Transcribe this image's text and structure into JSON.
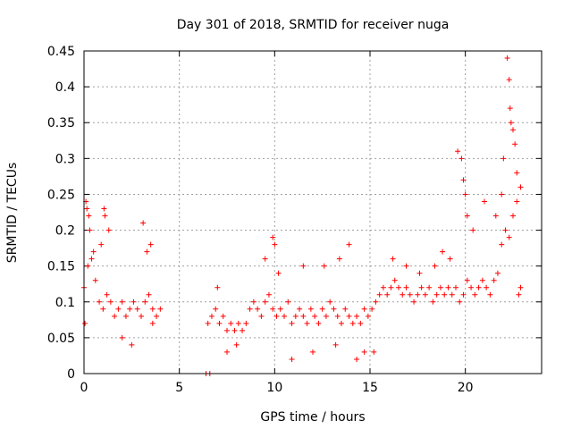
{
  "chart_data": {
    "type": "scatter",
    "title": "Day 301 of 2018, SRMTID for receiver nuga",
    "xlabel": "GPS time / hours",
    "ylabel": "SRMTID / TECUs",
    "xlim": [
      0,
      24
    ],
    "ylim": [
      0,
      0.45
    ],
    "xticks": [
      "0",
      "5",
      "10",
      "15",
      "20"
    ],
    "yticks": [
      "0",
      "0.05",
      "0.1",
      "0.15",
      "0.2",
      "0.25",
      "0.3",
      "0.35",
      "0.4",
      "0.45"
    ],
    "grid": true,
    "marker": "+",
    "color": "#ff0000",
    "series": [
      {
        "name": "SRMTID",
        "x": [
          0.0,
          0.2,
          0.4,
          0.6,
          0.8,
          1.0,
          1.2,
          1.4,
          1.6,
          1.8,
          2.0,
          2.2,
          2.4,
          2.6,
          2.8,
          3.0,
          3.2,
          3.4,
          3.6,
          3.8,
          4.0,
          6.5,
          6.7,
          6.9,
          7.1,
          7.3,
          7.5,
          7.7,
          7.9,
          8.1,
          8.3,
          8.5,
          8.7,
          8.9,
          9.1,
          9.3,
          9.5,
          9.7,
          9.9,
          10.1,
          10.3,
          10.5,
          10.7,
          10.9,
          11.1,
          11.3,
          11.5,
          11.7,
          11.9,
          12.1,
          12.3,
          12.5,
          12.7,
          12.9,
          13.1,
          13.3,
          13.5,
          13.7,
          13.9,
          14.1,
          14.3,
          14.5,
          14.7,
          14.9,
          15.1,
          15.3,
          15.5,
          15.7,
          15.9,
          16.1,
          16.3,
          16.5,
          16.7,
          16.9,
          17.1,
          17.3,
          17.5,
          17.7,
          17.9,
          18.1,
          18.3,
          18.5,
          18.7,
          18.9,
          19.1,
          19.3,
          19.5,
          19.7,
          19.9,
          20.1,
          20.3,
          20.5,
          20.7,
          20.9,
          21.1,
          21.3,
          21.5,
          21.7,
          21.9,
          22.1,
          22.3,
          22.5,
          22.7,
          22.9,
          0.05,
          0.1,
          0.15,
          0.25,
          0.3,
          0.5,
          0.9,
          1.05,
          1.1,
          1.3,
          2.0,
          2.5,
          3.1,
          3.3,
          3.5,
          3.6,
          6.4,
          6.6,
          7.0,
          7.5,
          8.0,
          9.5,
          9.9,
          10.0,
          10.2,
          10.9,
          11.5,
          12.0,
          12.6,
          13.2,
          13.4,
          13.9,
          14.3,
          14.7,
          15.2,
          16.2,
          16.9,
          17.6,
          18.4,
          18.8,
          19.2,
          19.6,
          19.8,
          19.9,
          20.0,
          20.1,
          20.4,
          21.0,
          21.6,
          21.9,
          22.0,
          22.2,
          22.3,
          22.35,
          22.4,
          22.5,
          22.6,
          22.7,
          22.8,
          22.9
        ],
        "y": [
          0.12,
          0.15,
          0.16,
          0.13,
          0.1,
          0.09,
          0.11,
          0.1,
          0.08,
          0.09,
          0.1,
          0.08,
          0.09,
          0.1,
          0.09,
          0.08,
          0.1,
          0.11,
          0.09,
          0.08,
          0.09,
          0.07,
          0.08,
          0.09,
          0.07,
          0.08,
          0.06,
          0.07,
          0.06,
          0.07,
          0.06,
          0.07,
          0.09,
          0.1,
          0.09,
          0.08,
          0.1,
          0.11,
          0.09,
          0.08,
          0.09,
          0.08,
          0.1,
          0.07,
          0.08,
          0.09,
          0.08,
          0.07,
          0.09,
          0.08,
          0.07,
          0.09,
          0.08,
          0.1,
          0.09,
          0.08,
          0.07,
          0.09,
          0.08,
          0.07,
          0.08,
          0.07,
          0.09,
          0.08,
          0.09,
          0.1,
          0.11,
          0.12,
          0.11,
          0.12,
          0.13,
          0.12,
          0.11,
          0.12,
          0.11,
          0.1,
          0.11,
          0.12,
          0.11,
          0.12,
          0.1,
          0.11,
          0.12,
          0.11,
          0.12,
          0.11,
          0.12,
          0.1,
          0.11,
          0.13,
          0.12,
          0.11,
          0.12,
          0.13,
          0.12,
          0.11,
          0.13,
          0.14,
          0.18,
          0.2,
          0.19,
          0.22,
          0.24,
          0.26,
          0.07,
          0.24,
          0.23,
          0.22,
          0.2,
          0.17,
          0.18,
          0.23,
          0.22,
          0.2,
          0.05,
          0.04,
          0.21,
          0.17,
          0.18,
          0.07,
          0.0,
          0.0,
          0.12,
          0.03,
          0.04,
          0.16,
          0.19,
          0.18,
          0.14,
          0.02,
          0.15,
          0.03,
          0.15,
          0.04,
          0.16,
          0.18,
          0.02,
          0.03,
          0.03,
          0.16,
          0.15,
          0.14,
          0.15,
          0.17,
          0.16,
          0.31,
          0.3,
          0.27,
          0.25,
          0.22,
          0.2,
          0.24,
          0.22,
          0.25,
          0.3,
          0.44,
          0.41,
          0.37,
          0.35,
          0.34,
          0.32,
          0.28,
          0.11,
          0.12
        ]
      }
    ]
  }
}
